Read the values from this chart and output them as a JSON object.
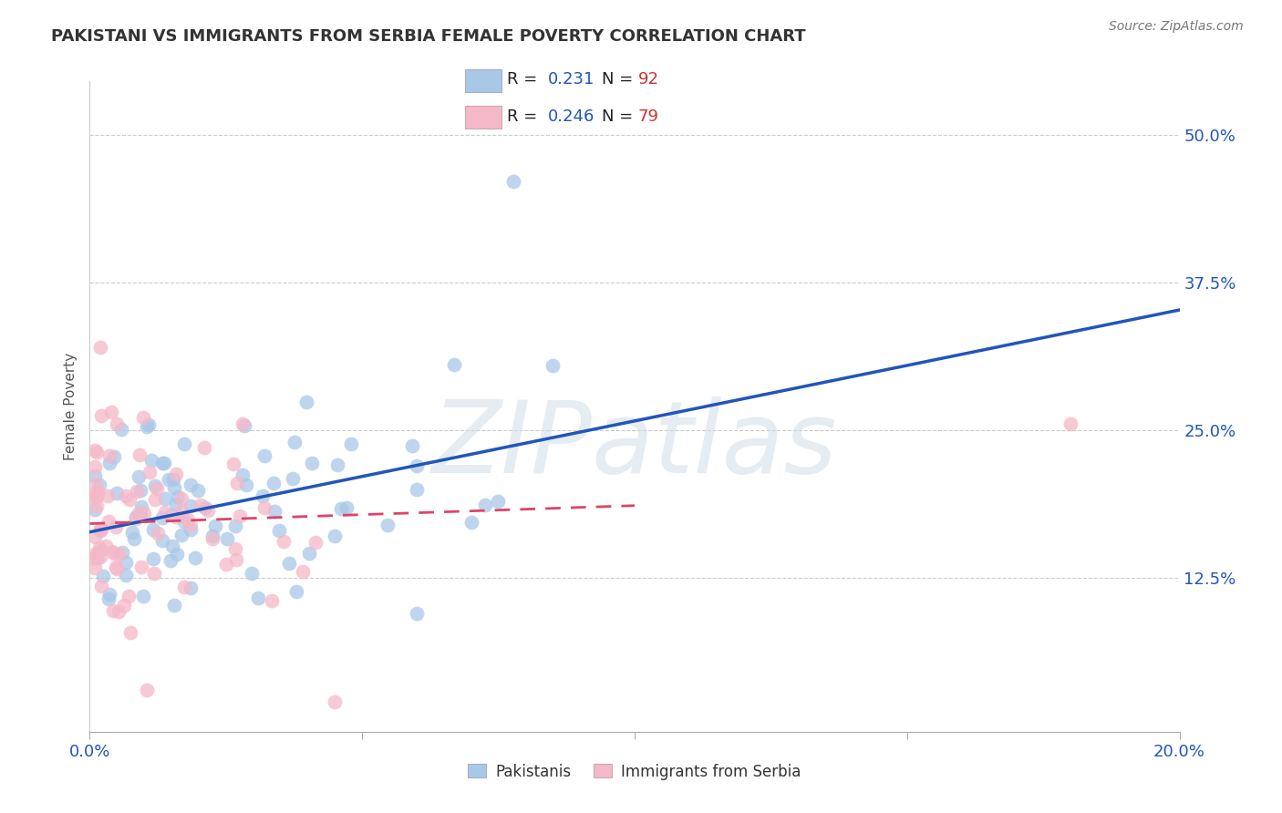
{
  "title": "PAKISTANI VS IMMIGRANTS FROM SERBIA FEMALE POVERTY CORRELATION CHART",
  "source": "Source: ZipAtlas.com",
  "ylabel": "Female Poverty",
  "xlim": [
    0.0,
    0.2
  ],
  "ylim": [
    -0.005,
    0.545
  ],
  "ytick_positions": [
    0.125,
    0.25,
    0.375,
    0.5
  ],
  "ytick_labels": [
    "12.5%",
    "25.0%",
    "37.5%",
    "50.0%"
  ],
  "blue_R": "0.231",
  "blue_N": "92",
  "pink_R": "0.246",
  "pink_N": "79",
  "blue_color": "#a8c8e8",
  "pink_color": "#f5b8c8",
  "blue_line_color": "#2255bb",
  "pink_line_color": "#dd4466",
  "legend_blue_label": "Pakistanis",
  "legend_pink_label": "Immigrants from Serbia",
  "watermark": "ZIPatlas",
  "label_color": "#2255bb",
  "n_color": "#cc3333",
  "text_color": "#333333",
  "grid_color": "#cccccc",
  "title_color": "#333333"
}
